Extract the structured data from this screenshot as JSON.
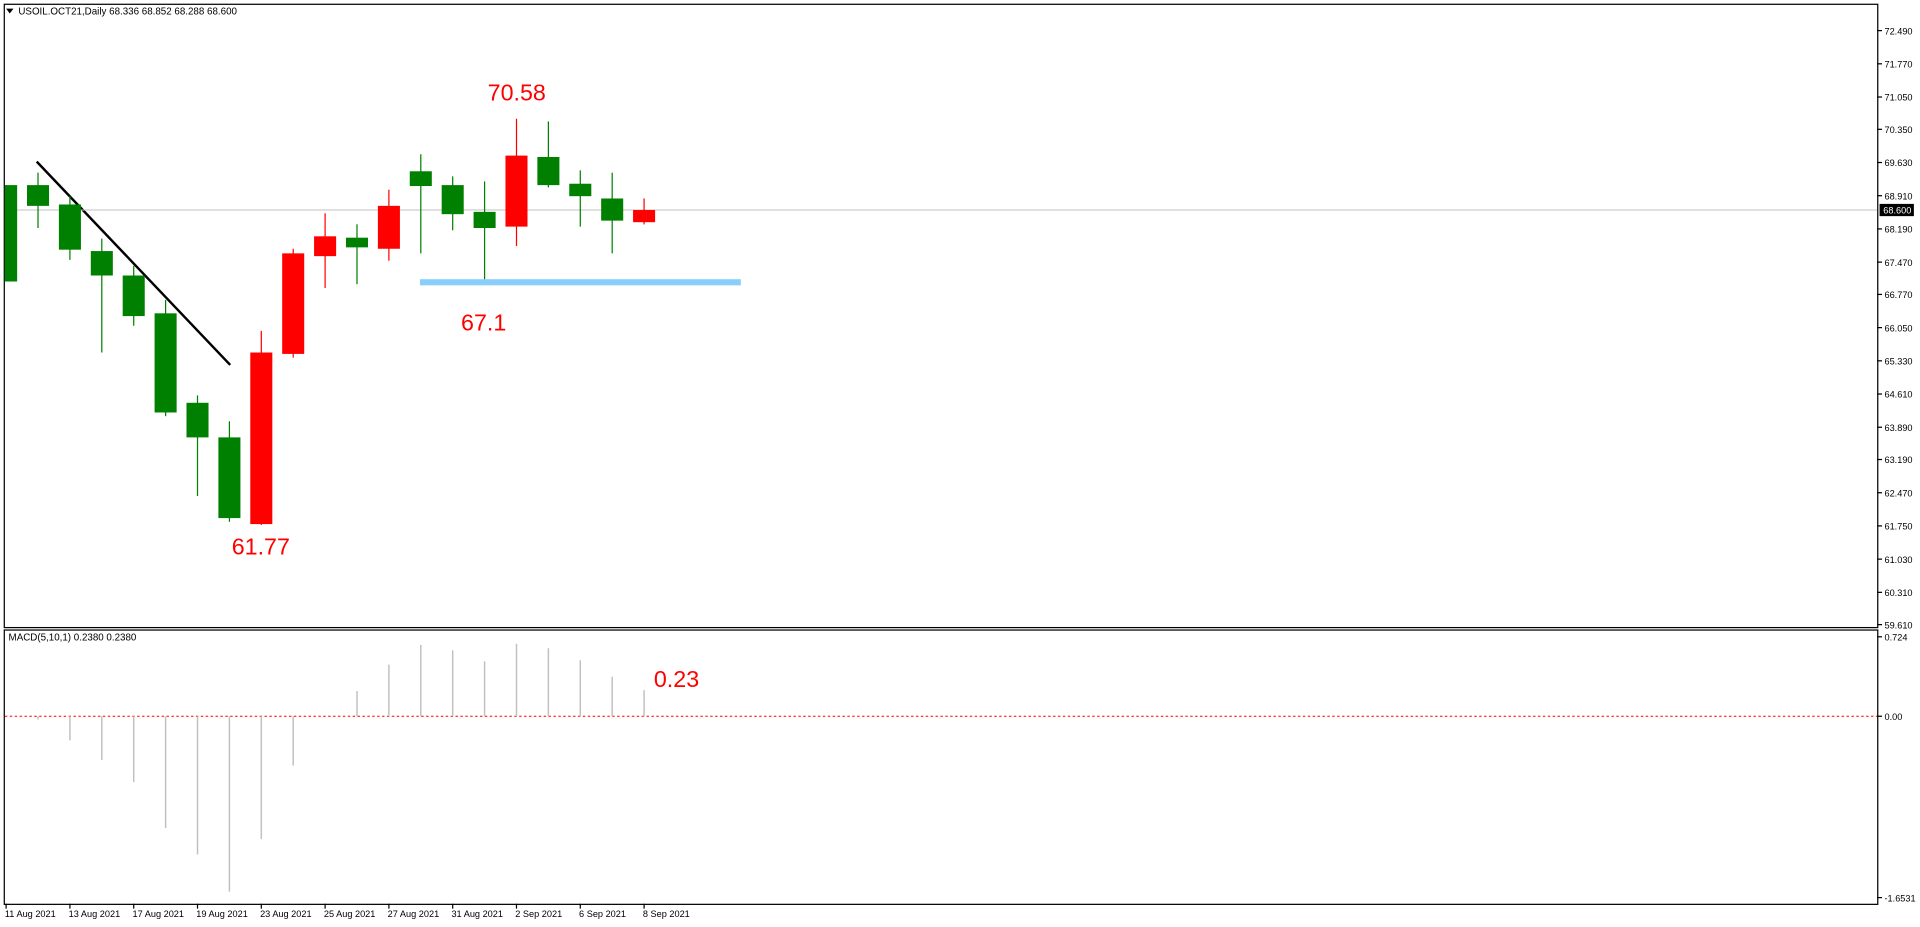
{
  "chart_data": [
    {
      "type": "candlestick",
      "title": "USOIL.OCT21,Daily  68.336 68.852 68.288 68.600",
      "categories": [
        "11 Aug 2021",
        null,
        "13 Aug 2021",
        null,
        "17 Aug 2021",
        null,
        "19 Aug 2021",
        null,
        "23 Aug 2021",
        null,
        "25 Aug 2021",
        null,
        "27 Aug 2021",
        null,
        "31 Aug 2021",
        null,
        "2 Sep 2021",
        null,
        "6 Sep 2021",
        null,
        "8 Sep 2021"
      ],
      "open": [
        69.14,
        69.14,
        68.72,
        67.71,
        67.18,
        66.36,
        64.42,
        63.67,
        61.79,
        65.48,
        67.6,
        68.0,
        67.76,
        69.44,
        69.14,
        68.56,
        68.24,
        69.75,
        69.17,
        68.85,
        68.336
      ],
      "high": [
        69.14,
        69.41,
        68.9,
        67.98,
        67.39,
        66.65,
        64.58,
        64.02,
        65.98,
        67.76,
        68.53,
        68.29,
        69.04,
        69.81,
        69.33,
        69.22,
        70.58,
        70.52,
        69.46,
        69.41,
        68.852
      ],
      "low": [
        67.05,
        68.21,
        67.52,
        65.51,
        66.09,
        64.13,
        62.4,
        61.84,
        61.77,
        65.4,
        66.91,
        66.99,
        67.5,
        67.66,
        68.16,
        67.1,
        67.82,
        69.09,
        68.24,
        67.66,
        68.288
      ],
      "close": [
        67.05,
        68.69,
        67.74,
        67.18,
        66.3,
        64.21,
        63.67,
        61.92,
        65.51,
        67.66,
        68.03,
        67.79,
        68.69,
        69.12,
        68.51,
        68.21,
        69.78,
        69.14,
        68.9,
        68.37,
        68.6
      ],
      "up_color": "#ff0000",
      "down_color": "#008000",
      "ylim": [
        59.559,
        73.021
      ],
      "yticks": [
        {
          "value": 72.49,
          "label": "72.490"
        },
        {
          "value": 71.77,
          "label": "71.770"
        },
        {
          "value": 71.05,
          "label": "71.050"
        },
        {
          "value": 70.35,
          "label": "70.350"
        },
        {
          "value": 69.63,
          "label": "69.630"
        },
        {
          "value": 68.91,
          "label": "68.910"
        },
        {
          "value": 68.19,
          "label": "68.190"
        },
        {
          "value": 67.47,
          "label": "67.470"
        },
        {
          "value": 66.77,
          "label": "66.770"
        },
        {
          "value": 66.05,
          "label": "66.050"
        },
        {
          "value": 65.33,
          "label": "65.330"
        },
        {
          "value": 64.61,
          "label": "64.610"
        },
        {
          "value": 63.89,
          "label": "63.890"
        },
        {
          "value": 63.19,
          "label": "63.190"
        },
        {
          "value": 62.47,
          "label": "62.470"
        },
        {
          "value": 61.75,
          "label": "61.750"
        },
        {
          "value": 61.03,
          "label": "61.030"
        },
        {
          "value": 60.31,
          "label": "60.310"
        },
        {
          "value": 59.61,
          "label": "59.610"
        }
      ],
      "current_price": {
        "value": 68.6,
        "label": "68.600"
      },
      "annotations": [
        "70.58",
        "67.1",
        "61.77"
      ]
    },
    {
      "type": "bar",
      "title": "MACD(5,10,1) 0.2380 0.2380",
      "values": [
        null,
        -0.03,
        -0.22,
        -0.4,
        -0.6,
        -1.02,
        -1.26,
        -1.6,
        -1.12,
        -0.45,
        null,
        0.23,
        0.47,
        0.65,
        0.6,
        0.5,
        0.66,
        0.62,
        0.51,
        0.36,
        0.238
      ],
      "color": "#c0c0c0",
      "ylim": [
        -1.709,
        0.78
      ],
      "yticks": [
        0.724,
        {
          "value": 0,
          "label": "0.00"
        },
        -1.6531
      ],
      "annotations": [
        "0.23"
      ]
    }
  ]
}
